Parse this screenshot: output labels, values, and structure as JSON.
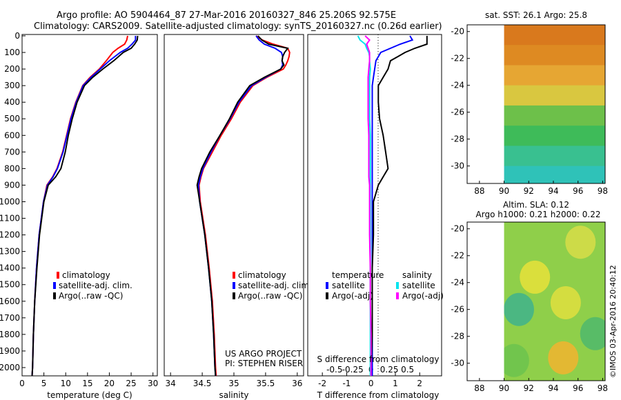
{
  "header": {
    "line1": "Argo profile: AO 5904464_87 27-Mar-2016 20160327_846 25.206S 92.575E",
    "line2": "Climatology: CARS2009. Satellite-adjusted climatology: synTS_20160327.nc (0.26d earlier)"
  },
  "side_text": "©IMOS 03-Apr-2016 20:40:12",
  "colors": {
    "red": "#ff0000",
    "blue": "#0000ff",
    "black": "#000000",
    "cyan": "#00e5ee",
    "magenta": "#ff00ff"
  },
  "chart_data": [
    {
      "id": "temperature",
      "type": "line",
      "xlabel": "temperature (deg C)",
      "xlim": [
        0,
        31
      ],
      "xticks": [
        "0",
        "5",
        "10",
        "15",
        "20",
        "25",
        "30"
      ],
      "ylim": [
        0,
        2050
      ],
      "yticks": [
        "0",
        "100",
        "200",
        "300",
        "400",
        "500",
        "600",
        "700",
        "800",
        "900",
        "1000",
        "1100",
        "1200",
        "1300",
        "1400",
        "1500",
        "1600",
        "1700",
        "1800",
        "1900",
        "2000"
      ],
      "legend": [
        "climatology",
        "satellite-adj. clim.",
        "Argo(..raw -QC)"
      ],
      "depth": [
        0,
        25,
        50,
        75,
        100,
        150,
        200,
        250,
        300,
        400,
        500,
        600,
        700,
        800,
        850,
        900,
        1000,
        1200,
        1400,
        1600,
        1800,
        2000,
        2050
      ],
      "series": [
        {
          "name": "climatology",
          "color": "red",
          "values": [
            24.2,
            24.0,
            23.5,
            22.0,
            20.8,
            19.3,
            17.7,
            15.6,
            13.9,
            12.3,
            11.1,
            10.2,
            9.3,
            8.0,
            7.0,
            5.7,
            4.9,
            3.9,
            3.3,
            2.9,
            2.6,
            2.4,
            2.3
          ]
        },
        {
          "name": "satellite-adj. clim.",
          "color": "blue",
          "values": [
            26.0,
            26.0,
            25.2,
            24.2,
            22.5,
            20.0,
            17.9,
            15.8,
            14.0,
            12.4,
            11.2,
            10.3,
            9.4,
            8.1,
            7.1,
            5.8,
            4.9,
            3.9,
            3.3,
            2.9,
            2.6,
            2.4,
            2.3
          ]
        },
        {
          "name": "Argo(..raw -QC)",
          "color": "black",
          "values": [
            26.5,
            26.4,
            25.8,
            25.0,
            23.2,
            21.0,
            18.5,
            16.2,
            14.3,
            12.6,
            11.5,
            10.6,
            9.9,
            8.9,
            7.7,
            6.0,
            5.0,
            4.0,
            3.4,
            2.9,
            2.6,
            2.4,
            2.3
          ]
        }
      ]
    },
    {
      "id": "salinity",
      "type": "line",
      "xlabel": "salinity",
      "xlim": [
        33.9,
        36.1
      ],
      "xticks": [
        "34",
        "34.5",
        "35",
        "35.5",
        "36"
      ],
      "ylim": [
        0,
        2050
      ],
      "legend": [
        "climatology",
        "satellite-adj. clim.",
        "Argo(..raw -QC)"
      ],
      "annotation": [
        "US ARGO PROJECT",
        "PI: STEPHEN RISER"
      ],
      "depth": [
        0,
        25,
        50,
        75,
        100,
        125,
        150,
        175,
        200,
        250,
        300,
        400,
        500,
        600,
        700,
        800,
        850,
        900,
        950,
        1000,
        1200,
        1400,
        1600,
        1800,
        2000,
        2050
      ],
      "series": [
        {
          "name": "climatology",
          "color": "red",
          "values": [
            35.35,
            35.45,
            35.62,
            35.85,
            35.88,
            35.87,
            35.85,
            35.82,
            35.78,
            35.52,
            35.3,
            35.1,
            34.96,
            34.8,
            34.66,
            34.52,
            34.48,
            34.45,
            34.46,
            34.47,
            34.55,
            34.61,
            34.66,
            34.69,
            34.71,
            34.72
          ]
        },
        {
          "name": "satellite-adj. clim.",
          "color": "blue",
          "values": [
            35.35,
            35.4,
            35.48,
            35.65,
            35.75,
            35.77,
            35.76,
            35.77,
            35.74,
            35.5,
            35.28,
            35.08,
            34.94,
            34.78,
            34.64,
            34.51,
            34.47,
            34.44,
            34.45,
            34.46,
            34.54,
            34.6,
            34.65,
            34.68,
            34.7,
            34.71
          ]
        },
        {
          "name": "Argo(..raw -QC)",
          "color": "black",
          "values": [
            35.38,
            35.44,
            35.55,
            35.85,
            35.8,
            35.77,
            35.76,
            35.79,
            35.74,
            35.48,
            35.25,
            35.06,
            34.93,
            34.78,
            34.62,
            34.49,
            34.45,
            34.42,
            34.44,
            34.46,
            34.54,
            34.6,
            34.65,
            34.68,
            34.7,
            34.71
          ]
        }
      ]
    },
    {
      "id": "difference",
      "type": "line",
      "xlabel": "T difference from climatology",
      "xlim": [
        -2.6,
        2.9
      ],
      "xticks": [
        "-2",
        "-1",
        "0",
        "1",
        "2"
      ],
      "top_label": "S difference from climatology",
      "top_ticks": [
        "-0.5",
        "-0.25",
        "0",
        "0.25",
        "0.5"
      ],
      "s_scale": [
        -0.5,
        0.5
      ],
      "ylim": [
        0,
        2050
      ],
      "legend_groups": [
        {
          "title": "temperature",
          "items": [
            "satellite",
            "Argo(-adj)"
          ]
        },
        {
          "title": "salinity",
          "items": [
            "satellite",
            "Argo(-adj)"
          ]
        }
      ],
      "depth": [
        0,
        25,
        50,
        75,
        100,
        125,
        150,
        200,
        250,
        300,
        400,
        500,
        600,
        700,
        800,
        850,
        900,
        1000,
        1200,
        1400,
        1600,
        1800,
        2000,
        2050
      ],
      "series": [
        {
          "name": "temperature satellite",
          "color": "blue",
          "values": [
            1.6,
            1.7,
            1.2,
            0.8,
            0.4,
            0.3,
            0.2,
            0.15,
            0.1,
            0.05,
            0.05,
            0.05,
            0.05,
            0.05,
            0.05,
            0.05,
            0.05,
            0.05,
            0.05,
            0.05,
            0.05,
            0.05,
            0.05,
            0.05
          ]
        },
        {
          "name": "temperature Argo(-adj)",
          "color": "black",
          "values": [
            2.3,
            2.3,
            2.3,
            1.8,
            1.4,
            1.1,
            0.8,
            0.7,
            0.5,
            0.3,
            0.3,
            0.35,
            0.5,
            0.6,
            0.7,
            0.5,
            0.3,
            0.1,
            0.1,
            0.05,
            0.05,
            0.05,
            0.0,
            0.0
          ]
        },
        {
          "name": "salinity satellite",
          "color": "cyan",
          "values": [
            -0.18,
            -0.15,
            -0.08,
            -0.06,
            -0.03,
            -0.02,
            -0.02,
            -0.01,
            -0.02,
            -0.02,
            -0.02,
            -0.02,
            -0.01,
            -0.01,
            -0.01,
            -0.01,
            -0.01,
            -0.01,
            -0.01,
            -0.01,
            -0.01,
            -0.01,
            -0.01,
            -0.01
          ]
        },
        {
          "name": "salinity Argo(-adj)",
          "color": "magenta",
          "values": [
            -0.08,
            -0.02,
            -0.06,
            -0.04,
            -0.02,
            -0.02,
            -0.02,
            -0.03,
            -0.04,
            -0.04,
            -0.04,
            -0.04,
            -0.03,
            -0.03,
            -0.03,
            -0.03,
            -0.02,
            -0.02,
            -0.02,
            -0.01,
            -0.01,
            0.0,
            0.0,
            0.0
          ]
        }
      ]
    },
    {
      "id": "sst_map",
      "type": "heatmap",
      "title": "sat. SST: 26.1  Argo: 25.8",
      "xlim": [
        87,
        98.2
      ],
      "ylim": [
        -31.3,
        -19.5
      ],
      "xticks": [
        "88",
        "90",
        "92",
        "94",
        "96",
        "98"
      ],
      "yticks": [
        "-20",
        "-22",
        "-24",
        "-26",
        "-28",
        "-30"
      ],
      "data_lon_min": 90,
      "lat_rows": [
        -19.5,
        -21,
        -22.5,
        -24,
        -25.5,
        -27,
        -28.5,
        -30,
        -31.3
      ],
      "row_colors": [
        "#d9791d",
        "#de8a22",
        "#e6a633",
        "#d9c740",
        "#6dc04a",
        "#3ebb59",
        "#39c090",
        "#2fc2b8",
        "#2cc4c4"
      ]
    },
    {
      "id": "sla_map",
      "type": "heatmap",
      "title": "Altim. SLA: 0.12",
      "subtitle": "Argo h1000: 0.21 h2000: 0.22",
      "xlim": [
        87,
        98.2
      ],
      "ylim": [
        -31.3,
        -19.5
      ],
      "xticks": [
        "88",
        "90",
        "92",
        "94",
        "96",
        "98"
      ],
      "yticks": [
        "-20",
        "-22",
        "-24",
        "-26",
        "-28",
        "-30"
      ],
      "data_lon_min": 90,
      "base_color": "#8fcf4a",
      "blobs": [
        {
          "lon": 92.5,
          "lat": -23.6,
          "color": "#e8e23a"
        },
        {
          "lon": 91.2,
          "lat": -26.0,
          "color": "#3fb38c"
        },
        {
          "lon": 95.0,
          "lat": -25.5,
          "color": "#e1df3e"
        },
        {
          "lon": 96.2,
          "lat": -21.0,
          "color": "#d8dd48"
        },
        {
          "lon": 94.8,
          "lat": -29.6,
          "color": "#f2b42f"
        },
        {
          "lon": 97.4,
          "lat": -27.8,
          "color": "#4fb86c"
        },
        {
          "lon": 90.8,
          "lat": -29.8,
          "color": "#6cc34e"
        }
      ]
    }
  ]
}
